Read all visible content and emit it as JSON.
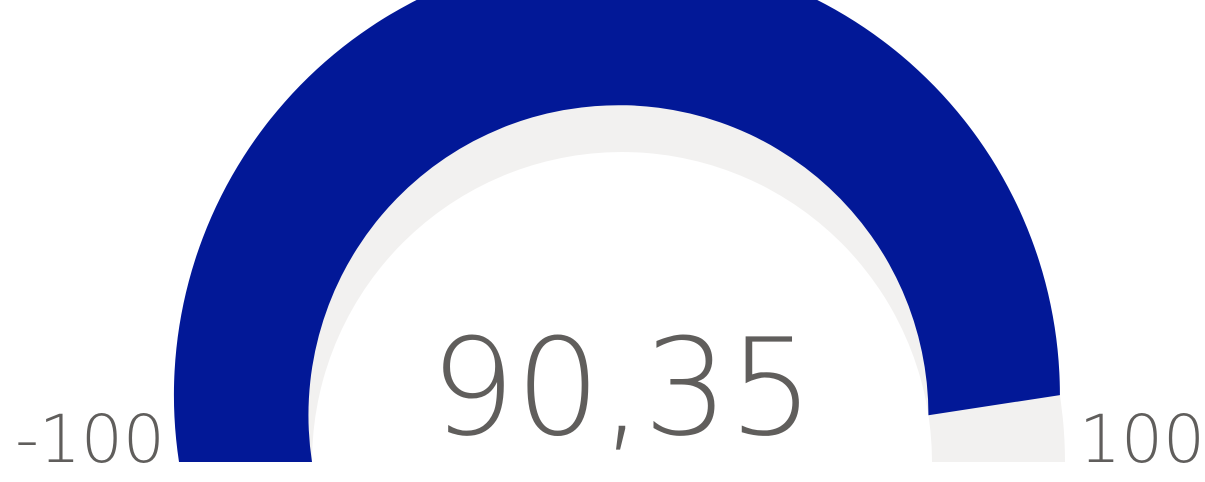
{
  "chart_data": {
    "type": "gauge",
    "value": 90.35,
    "value_label": "90,35",
    "min": -100,
    "max": 100,
    "min_label": "-100",
    "max_label": "100",
    "colors": {
      "fill": "#021897",
      "track": "#f2f1f0",
      "text": "#605e5c"
    }
  }
}
